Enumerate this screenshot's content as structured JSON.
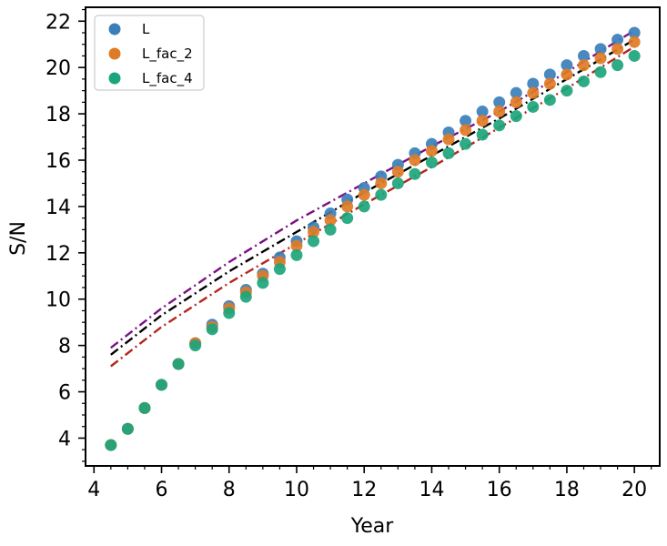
{
  "chart_data": {
    "type": "scatter",
    "title": "",
    "xlabel": "Year",
    "ylabel": "S/N",
    "xlim": [
      3.75,
      20.75
    ],
    "ylim": [
      2.8,
      22.6
    ],
    "xticks": [
      4,
      6,
      8,
      10,
      12,
      14,
      16,
      18,
      20
    ],
    "yticks": [
      4,
      6,
      8,
      10,
      12,
      14,
      16,
      18,
      20,
      22
    ],
    "legend_position": "top-left",
    "series": [
      {
        "name": "L",
        "color": "#3b7fba",
        "x": [
          4.5,
          5.0,
          5.5,
          6.0,
          6.5,
          7.0,
          7.5,
          8.0,
          8.5,
          9.0,
          9.5,
          10.0,
          10.5,
          11.0,
          11.5,
          12.0,
          12.5,
          13.0,
          13.5,
          14.0,
          14.5,
          15.0,
          15.5,
          16.0,
          16.5,
          17.0,
          17.5,
          18.0,
          18.5,
          19.0,
          19.5,
          20.0
        ],
        "y": [
          3.7,
          4.4,
          5.3,
          6.3,
          7.2,
          8.1,
          8.9,
          9.7,
          10.4,
          11.1,
          11.8,
          12.5,
          13.1,
          13.7,
          14.3,
          14.8,
          15.3,
          15.8,
          16.3,
          16.7,
          17.2,
          17.7,
          18.1,
          18.5,
          18.9,
          19.3,
          19.7,
          20.1,
          20.5,
          20.8,
          21.2,
          21.5
        ]
      },
      {
        "name": "L_fac_2",
        "color": "#e07b25",
        "x": [
          4.5,
          5.0,
          5.5,
          6.0,
          6.5,
          7.0,
          7.5,
          8.0,
          8.5,
          9.0,
          9.5,
          10.0,
          10.5,
          11.0,
          11.5,
          12.0,
          12.5,
          13.0,
          13.5,
          14.0,
          14.5,
          15.0,
          15.5,
          16.0,
          16.5,
          17.0,
          17.5,
          18.0,
          18.5,
          19.0,
          19.5,
          20.0
        ],
        "y": [
          3.7,
          4.4,
          5.3,
          6.3,
          7.2,
          8.1,
          8.8,
          9.6,
          10.3,
          11.0,
          11.6,
          12.3,
          12.9,
          13.4,
          14.0,
          14.5,
          15.0,
          15.5,
          16.0,
          16.4,
          16.9,
          17.3,
          17.7,
          18.1,
          18.5,
          18.9,
          19.3,
          19.7,
          20.1,
          20.4,
          20.8,
          21.1
        ]
      },
      {
        "name": "L_fac_4",
        "color": "#1ba57c",
        "x": [
          4.5,
          5.0,
          5.5,
          6.0,
          6.5,
          7.0,
          7.5,
          8.0,
          8.5,
          9.0,
          9.5,
          10.0,
          10.5,
          11.0,
          11.5,
          12.0,
          12.5,
          13.0,
          13.5,
          14.0,
          14.5,
          15.0,
          15.5,
          16.0,
          16.5,
          17.0,
          17.5,
          18.0,
          18.5,
          19.0,
          19.5,
          20.0
        ],
        "y": [
          3.7,
          4.4,
          5.3,
          6.3,
          7.2,
          8.0,
          8.7,
          9.4,
          10.1,
          10.7,
          11.3,
          11.9,
          12.5,
          13.0,
          13.5,
          14.0,
          14.5,
          15.0,
          15.4,
          15.9,
          16.3,
          16.7,
          17.1,
          17.5,
          17.9,
          18.3,
          18.6,
          19.0,
          19.4,
          19.8,
          20.1,
          20.5
        ]
      }
    ],
    "lines": [
      {
        "name": "purple-dash-dot",
        "color": "#7a1185",
        "style": "dash-dot",
        "x": [
          4.5,
          6.0,
          8.0,
          10.0,
          12.0,
          14.0,
          16.0,
          18.0,
          20.0
        ],
        "y": [
          7.9,
          9.6,
          11.6,
          13.4,
          15.0,
          16.6,
          18.1,
          19.8,
          21.6
        ]
      },
      {
        "name": "black-dash-dot",
        "color": "#000000",
        "style": "dash-dot",
        "x": [
          4.5,
          6.0,
          8.0,
          10.0,
          12.0,
          14.0,
          16.0,
          18.0,
          20.0
        ],
        "y": [
          7.6,
          9.3,
          11.2,
          12.9,
          14.6,
          16.2,
          17.8,
          19.5,
          21.2
        ]
      },
      {
        "name": "brown-dash-dot",
        "color": "#b3261e",
        "style": "dash-dot",
        "x": [
          4.5,
          6.0,
          8.0,
          10.0,
          12.0,
          14.0,
          16.0,
          18.0,
          20.0
        ],
        "y": [
          7.1,
          8.8,
          10.7,
          12.4,
          14.1,
          15.7,
          17.4,
          19.1,
          20.9
        ]
      }
    ]
  }
}
